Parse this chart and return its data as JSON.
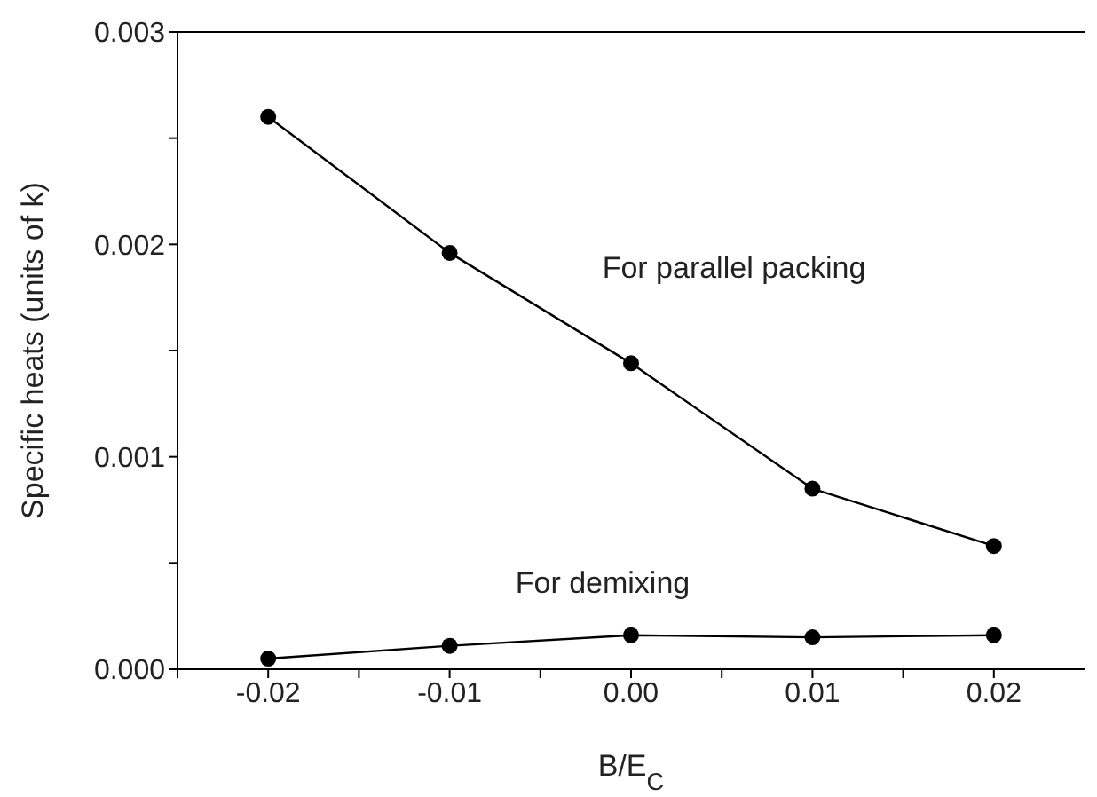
{
  "chart_data": {
    "type": "line",
    "xlabel": "B/E$_{C}$",
    "ylabel": "Specific heats (units of k)",
    "x": [
      -0.02,
      -0.01,
      0.0,
      0.01,
      0.02
    ],
    "series": [
      {
        "name": "For parallel packing",
        "color": "#000000",
        "values": [
          0.0026,
          0.00196,
          0.00144,
          0.00085,
          0.00058
        ]
      },
      {
        "name": "For demixing",
        "color": "#000000",
        "values": [
          5e-05,
          0.00011,
          0.00016,
          0.00015,
          0.00016
        ]
      }
    ],
    "xlim": [
      -0.025,
      0.025
    ],
    "xticks": [
      {
        "value": -0.025,
        "label": null
      },
      {
        "value": -0.02,
        "label": "-0.02"
      },
      {
        "value": -0.015,
        "label": null
      },
      {
        "value": -0.01,
        "label": "-0.01"
      },
      {
        "value": -0.005,
        "label": null
      },
      {
        "value": 0,
        "label": "0.00"
      },
      {
        "value": 0.005,
        "label": null
      },
      {
        "value": 0.01,
        "label": "0.01"
      },
      {
        "value": 0.015,
        "label": null
      },
      {
        "value": 0.02,
        "label": "0.02"
      }
    ],
    "ylim": [
      0,
      0.003
    ],
    "yticks": [
      {
        "value": 0,
        "label": "0.000"
      },
      {
        "value": 0.0005,
        "label": null
      },
      {
        "value": 0.001,
        "label": "0.001"
      },
      {
        "value": 0.0015,
        "label": null
      },
      {
        "value": 0.002,
        "label": "0.002"
      },
      {
        "value": 0.0025,
        "label": null
      },
      {
        "value": 0.003,
        "label": "0.003"
      }
    ],
    "marker": "circle",
    "line_style": "solid",
    "grid": false,
    "legend": false
  }
}
